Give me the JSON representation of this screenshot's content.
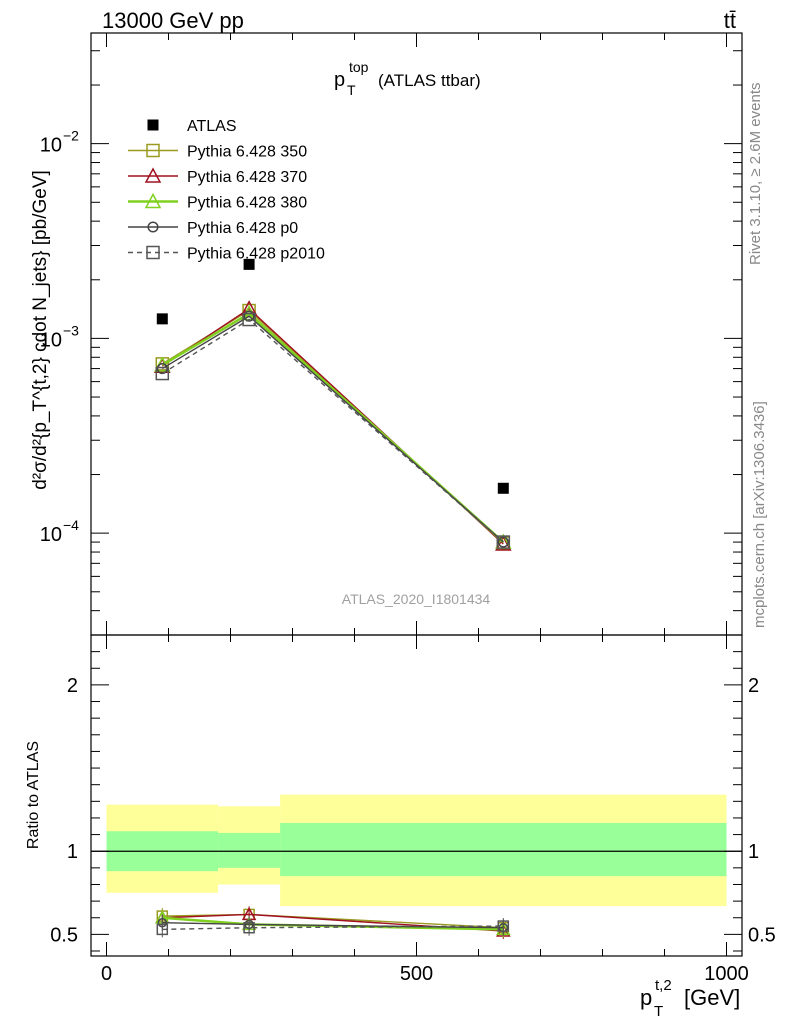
{
  "header": {
    "energy": "13000 GeV pp",
    "process": "tt̄",
    "side_rivet": "Rivet 3.1.10, ≥ 2.6M events",
    "side_source": "mcplots.cern.ch [arXiv:1306.3436]"
  },
  "chart_data": {
    "type": "scatter",
    "title_main": "p",
    "title_sub": "T",
    "title_sup": "top",
    "title_suffix": "(ATLAS ttbar)",
    "watermark": "ATLAS_2020_I1801434",
    "ylabel": "d²σ/d²{p_T^{t,2} cdot N_jets} [pb/GeV]",
    "xlabel_main": "p",
    "xlabel_sub": "T",
    "xlabel_sup": "t,2",
    "xlabel_unit": "[GeV]",
    "ratio_ylabel": "Ratio to ATLAS",
    "x_range": [
      -25,
      1025
    ],
    "x_ticks": [
      0,
      500,
      1000
    ],
    "x_tick_labels": [
      "0",
      "500",
      "1000"
    ],
    "y_log": true,
    "y_range": [
      3e-05,
      0.037
    ],
    "y_tick_labels": [
      {
        "value": 0.01,
        "base": "10",
        "exp": "−2"
      },
      {
        "value": 0.001,
        "base": "10",
        "exp": "−3"
      },
      {
        "value": 0.0001,
        "base": "10",
        "exp": "−4"
      }
    ],
    "ratio_y_range": [
      0.37,
      2.3
    ],
    "ratio_y_ticks": [
      0.5,
      1,
      2
    ],
    "ratio_y_tick_labels": [
      "0.5",
      "1",
      "2"
    ],
    "data": {
      "name": "ATLAS",
      "color": "#000000",
      "x": [
        90,
        230,
        640
      ],
      "y": [
        0.00126,
        0.0024,
        0.00017
      ],
      "band_edges": [
        0,
        180,
        280,
        1000
      ],
      "ratio_band_inner": [
        [
          0.88,
          1.12
        ],
        [
          0.9,
          1.11
        ],
        [
          0.85,
          1.17
        ]
      ],
      "ratio_band_outer": [
        [
          0.75,
          1.28
        ],
        [
          0.8,
          1.27
        ],
        [
          0.67,
          1.34
        ]
      ]
    },
    "series": [
      {
        "name": "Pythia 6.428 350",
        "color": "#9a9a20",
        "marker": "square",
        "dash": "",
        "y": [
          0.00074,
          0.00139,
          8.9e-05
        ],
        "ratio": [
          0.61,
          0.62,
          0.54
        ]
      },
      {
        "name": "Pythia 6.428 370",
        "color": "#a01020",
        "marker": "triangle",
        "dash": "",
        "y": [
          0.00072,
          0.00142,
          8.8e-05
        ],
        "ratio": [
          0.6,
          0.62,
          0.52
        ]
      },
      {
        "name": "Pythia 6.428 380",
        "color": "#80d020",
        "marker": "triangle",
        "dash": "",
        "y": [
          0.00073,
          0.00134,
          9e-05
        ],
        "ratio": [
          0.6,
          0.56,
          0.53
        ]
      },
      {
        "name": "Pythia 6.428 p0",
        "color": "#444444",
        "marker": "circle",
        "dash": "",
        "y": [
          0.0007,
          0.0013,
          9e-05
        ],
        "ratio": [
          0.57,
          0.56,
          0.54
        ]
      },
      {
        "name": "Pythia 6.428 p2010",
        "color": "#555555",
        "marker": "square",
        "dash": "5,4",
        "y": [
          0.00066,
          0.00125,
          9e-05
        ],
        "ratio": [
          0.53,
          0.54,
          0.55
        ]
      }
    ]
  }
}
